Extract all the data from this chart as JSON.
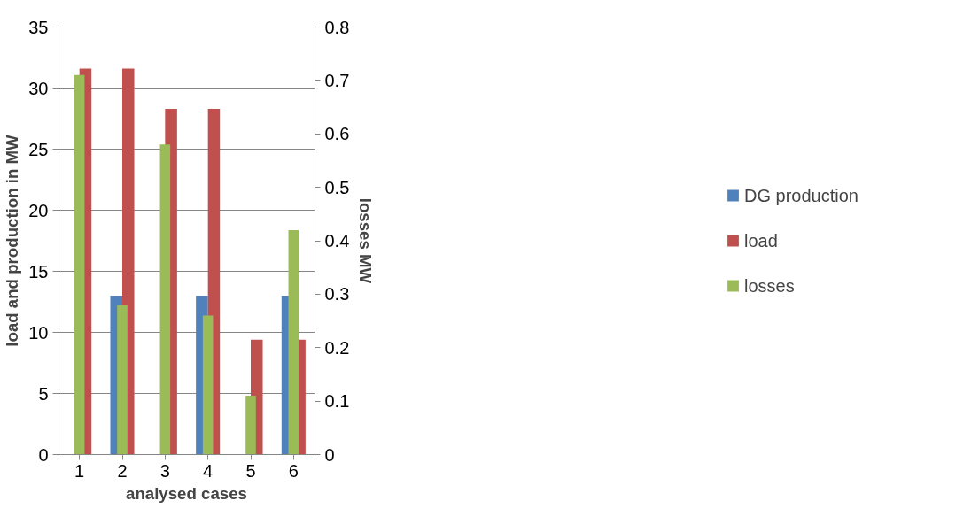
{
  "chart_data": {
    "type": "bar",
    "xlabel": "analysed cases",
    "ylabel": "load and production in MW",
    "y2label": "losses MW",
    "categories": [
      "1",
      "2",
      "3",
      "4",
      "5",
      "6"
    ],
    "series": [
      {
        "name": "DG production",
        "color": "#4f81bd",
        "values": [
          0,
          13.0,
          0,
          13.0,
          0,
          13.0
        ]
      },
      {
        "name": "load",
        "color": "#c0504d",
        "values": [
          31.6,
          31.6,
          28.3,
          28.3,
          9.4,
          9.4
        ]
      },
      {
        "name": "losses",
        "color": "#9bbb59",
        "axis": "y2",
        "values": [
          0.71,
          0.28,
          0.58,
          0.26,
          0.11,
          0.42
        ]
      }
    ],
    "ylim": [
      0,
      35
    ],
    "yticks": [
      0,
      5,
      10,
      15,
      20,
      25,
      30,
      35
    ],
    "y2lim": [
      0,
      0.8
    ],
    "y2ticks": [
      0,
      0.1,
      0.2,
      0.3,
      0.4,
      0.5,
      0.6,
      0.7,
      0.8
    ],
    "grid": "y",
    "legend": "right"
  }
}
